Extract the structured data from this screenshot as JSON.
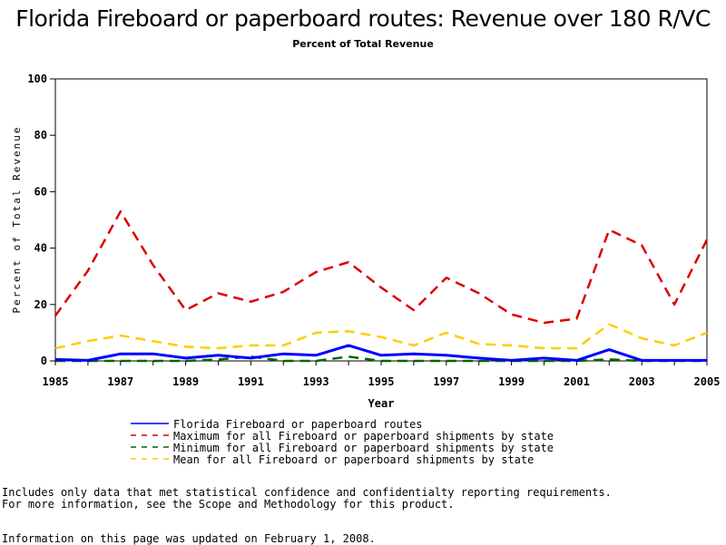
{
  "chart_data": {
    "type": "line",
    "title": "Florida Fireboard or paperboard routes: Revenue over 180 R/VC",
    "subtitle": "Percent of Total Revenue",
    "xlabel": "Year",
    "ylabel": "Percent of Total Revenue",
    "xlim": [
      1985,
      2005
    ],
    "ylim": [
      0,
      100
    ],
    "x_ticks": [
      "1985",
      "1987",
      "1989",
      "1991",
      "1993",
      "1995",
      "1997",
      "1999",
      "2001",
      "2003",
      "2005"
    ],
    "y_ticks": [
      "0",
      "20",
      "40",
      "60",
      "80",
      "100"
    ],
    "grid": false,
    "legend_position": "bottom",
    "x": [
      1985,
      1986,
      1987,
      1988,
      1989,
      1990,
      1991,
      1992,
      1993,
      1994,
      1995,
      1996,
      1997,
      1998,
      1999,
      2000,
      2001,
      2002,
      2003,
      2004,
      2005
    ],
    "series": [
      {
        "name": "Florida Fireboard or paperboard routes",
        "color": "#0000ff",
        "dash": "solid",
        "values": [
          0.5,
          0.2,
          2.5,
          2.5,
          1.0,
          2.0,
          1.0,
          2.5,
          2.0,
          5.5,
          2.0,
          2.5,
          2.0,
          1.0,
          0.2,
          1.0,
          0.2,
          4.0,
          0.2,
          0.2,
          0.2
        ]
      },
      {
        "name": "Maximum for all Fireboard or paperboard shipments by state",
        "color": "#dd0000",
        "dash": "dashed",
        "values": [
          16,
          32,
          53,
          34,
          18,
          24,
          21,
          24.5,
          31.5,
          35,
          26,
          18,
          29.5,
          24,
          16.5,
          13.5,
          15,
          46.5,
          41,
          20,
          43
        ]
      },
      {
        "name": "Minimum for all Fireboard or paperboard shipments by state",
        "color": "#006600",
        "dash": "dashed",
        "values": [
          0,
          0,
          0,
          0,
          0,
          0.5,
          1.5,
          0,
          0,
          1.5,
          0,
          0,
          0,
          0,
          0,
          0,
          0,
          0.5,
          0,
          0,
          0
        ]
      },
      {
        "name": "Mean for all Fireboard or paperboard shipments by state",
        "color": "#ffcc00",
        "dash": "dashed",
        "values": [
          4.5,
          7,
          9,
          7,
          5,
          4.5,
          5.5,
          5.5,
          10,
          10.5,
          8.5,
          5.5,
          10,
          6,
          5.5,
          4.5,
          4.5,
          13,
          8,
          5.5,
          10
        ]
      }
    ]
  },
  "footnotes": [
    "Includes only data that met statistical confidence and confidentialty reporting requirements.",
    "For more information, see the Scope and Methodology for this product.",
    "Information on this page was updated on February 1, 2008."
  ]
}
